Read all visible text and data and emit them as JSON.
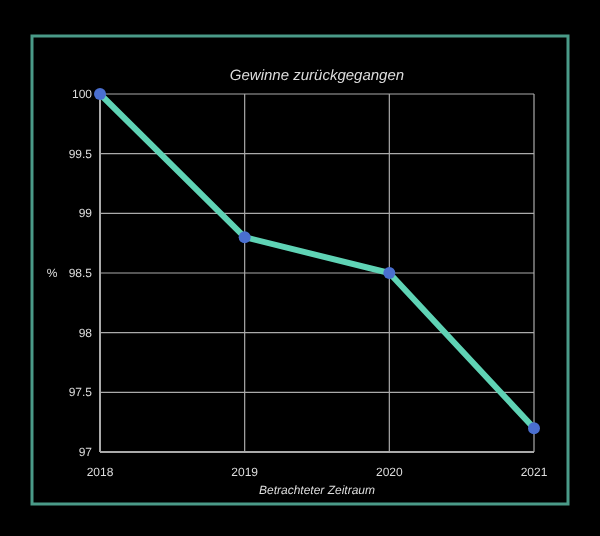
{
  "chart_data": {
    "type": "line",
    "title": "Gewinne zurückgegangen",
    "xlabel": "Betrachteter Zeitraum",
    "ylabel": "%",
    "x": [
      2018,
      2019,
      2020,
      2021
    ],
    "xlim": [
      2018,
      2021
    ],
    "xticks": [
      2018,
      2019,
      2020,
      2021
    ],
    "ylim": [
      97,
      100
    ],
    "yticks": [
      97,
      97.5,
      98,
      98.5,
      99,
      99.5,
      100
    ],
    "grid": true,
    "marker": "circle",
    "line_style": "solid",
    "series": [
      {
        "color": "#5fd3b5",
        "values": [
          100,
          98.8,
          98.5,
          97.2
        ]
      }
    ]
  }
}
